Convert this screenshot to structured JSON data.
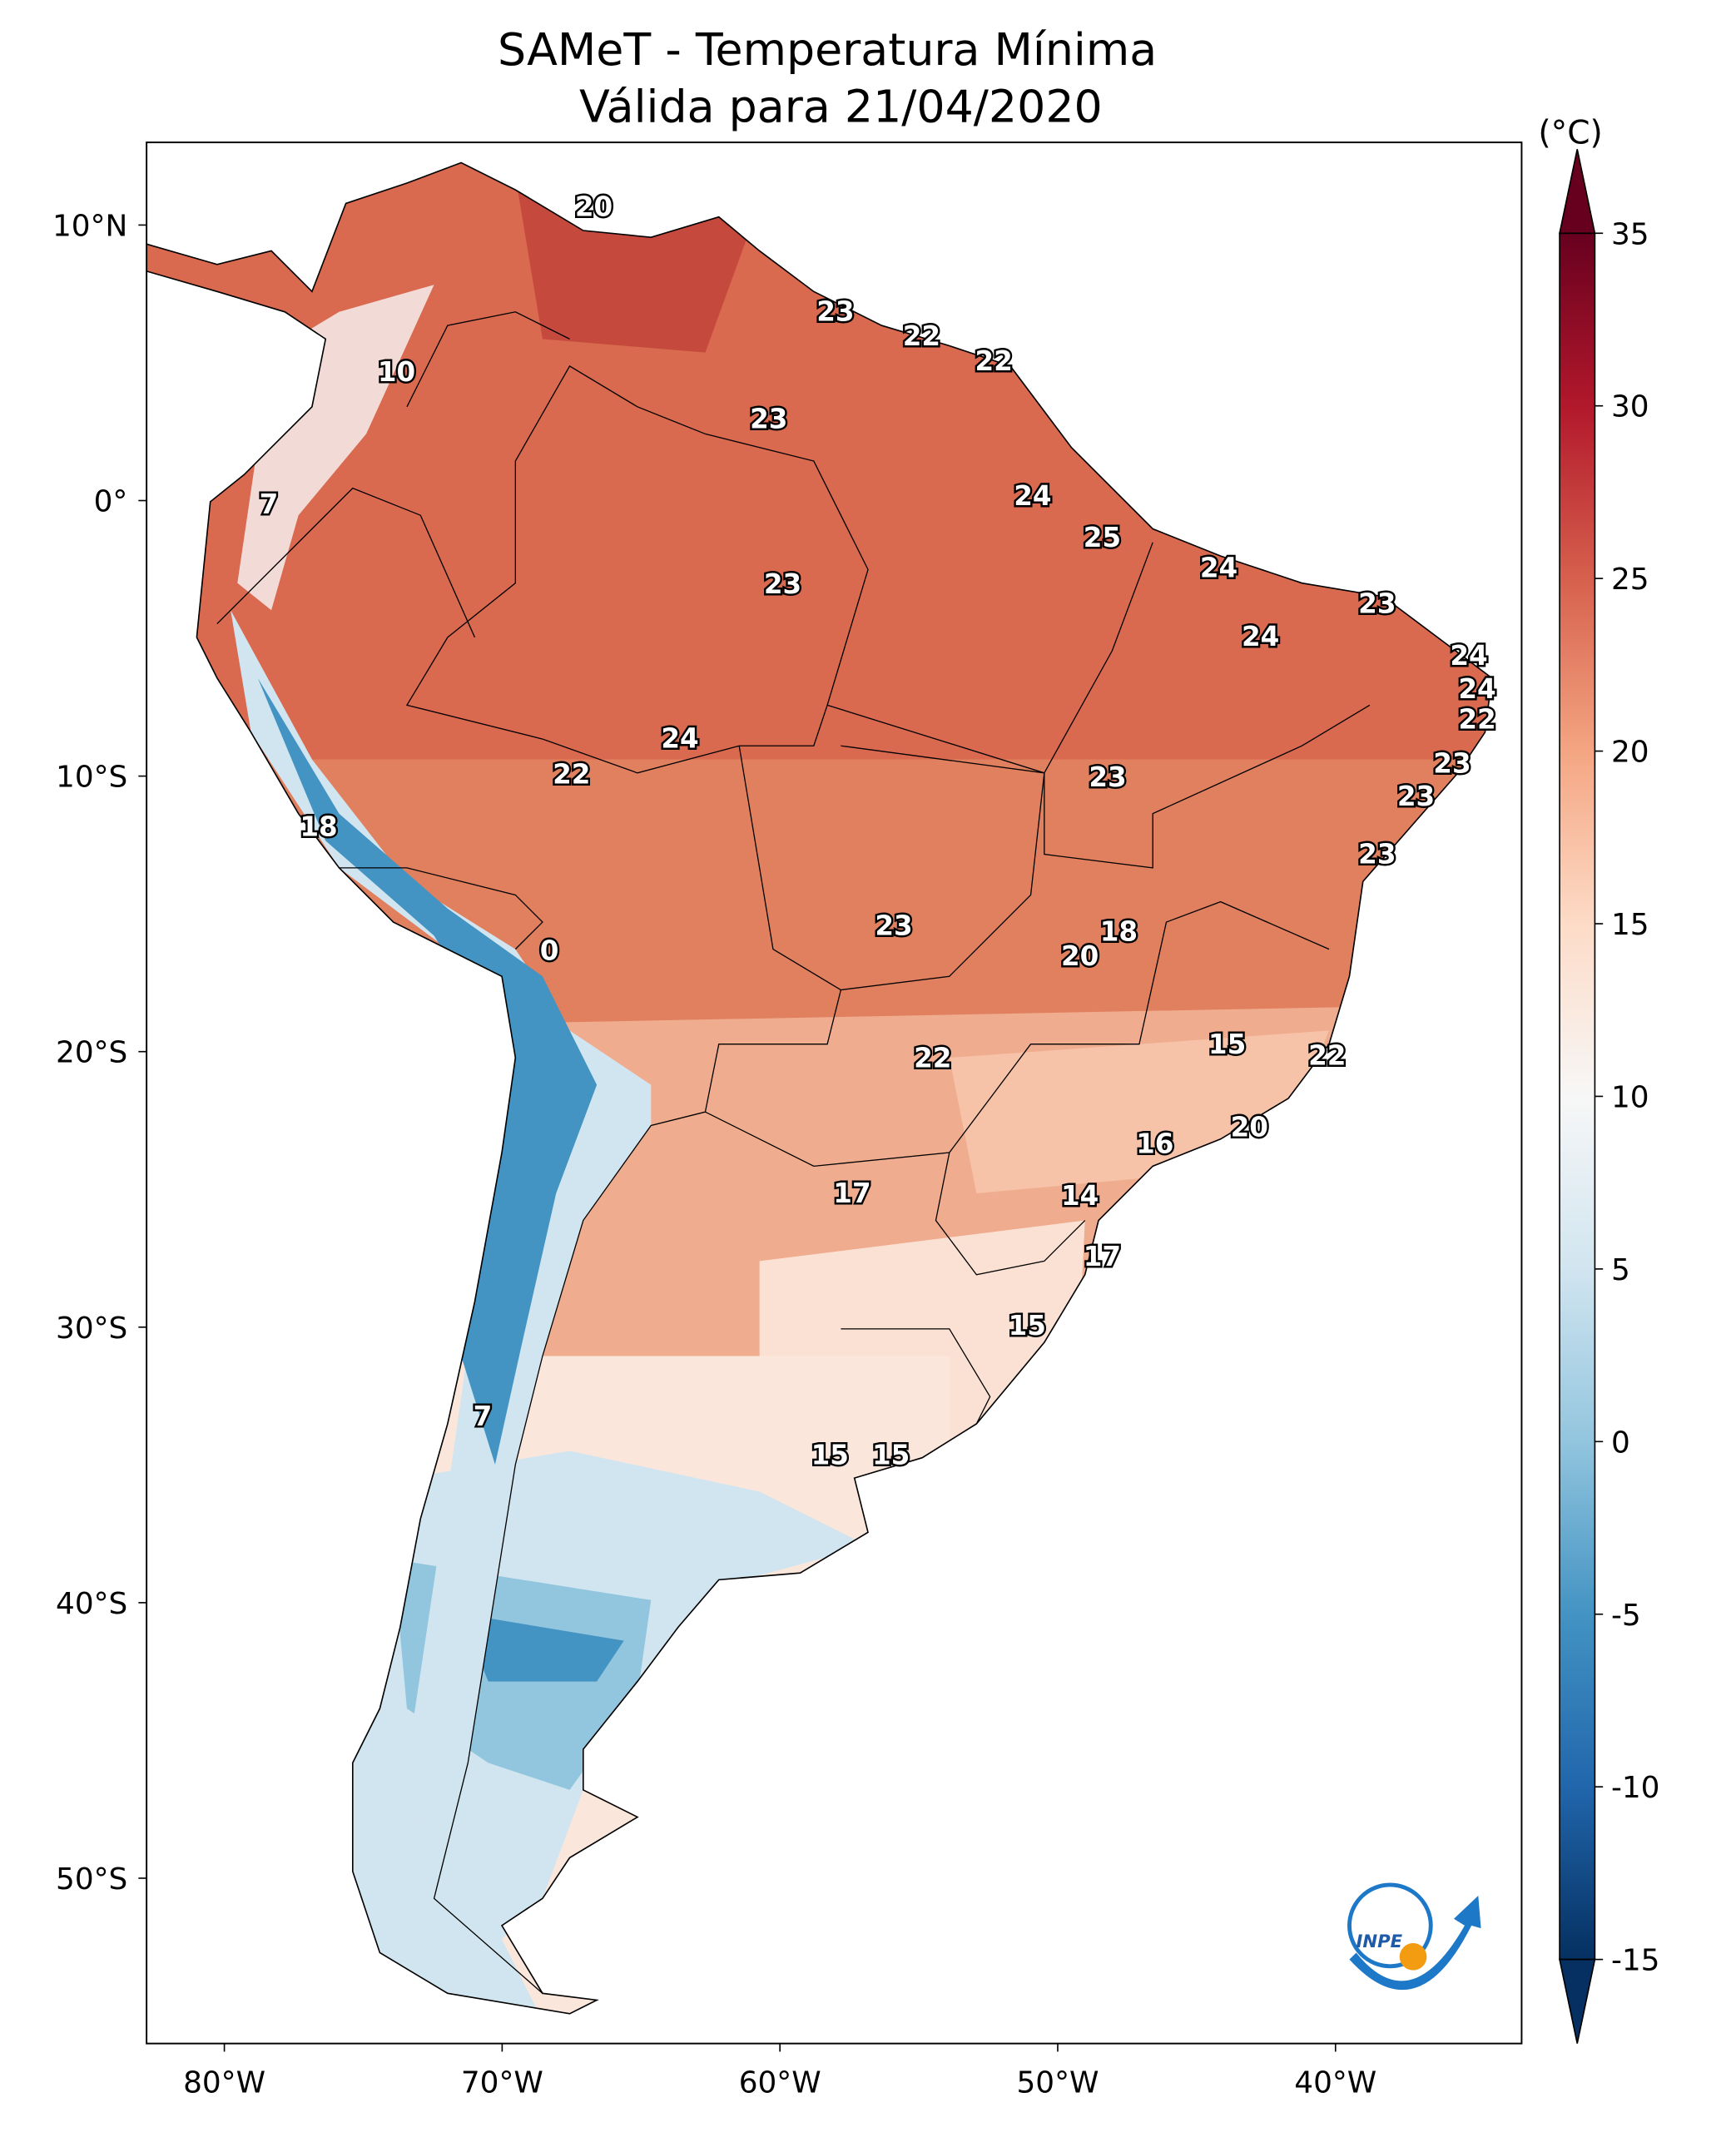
{
  "chart_data": {
    "type": "map",
    "title": "SAMeT - Temperatura Mínima",
    "subtitle": "Válida para 21/04/2020",
    "colorbar_label": "(°C)",
    "colormap": "RdBu_r",
    "logo_text": "INPE",
    "xlim": [
      -82.8,
      -33.3
    ],
    "ylim": [
      -56,
      13
    ],
    "xticks": [
      {
        "value": -80,
        "label": "80°W"
      },
      {
        "value": -70,
        "label": "70°W"
      },
      {
        "value": -60,
        "label": "60°W"
      },
      {
        "value": -50,
        "label": "50°W"
      },
      {
        "value": -40,
        "label": "40°W"
      }
    ],
    "yticks": [
      {
        "value": 10,
        "label": "10°N"
      },
      {
        "value": 0,
        "label": "0°"
      },
      {
        "value": -10,
        "label": "10°S"
      },
      {
        "value": -20,
        "label": "20°S"
      },
      {
        "value": -30,
        "label": "30°S"
      },
      {
        "value": -40,
        "label": "40°S"
      },
      {
        "value": -50,
        "label": "50°S"
      }
    ],
    "clim": [
      -15,
      35
    ],
    "cticks": [
      -15,
      -10,
      -5,
      0,
      5,
      10,
      15,
      20,
      25,
      30,
      35
    ],
    "points": [
      {
        "lon": -66.7,
        "lat": 10.6,
        "value": 20
      },
      {
        "lon": -58.0,
        "lat": 6.8,
        "value": 23
      },
      {
        "lon": -54.9,
        "lat": 5.9,
        "value": 22
      },
      {
        "lon": -52.3,
        "lat": 5.0,
        "value": 22
      },
      {
        "lon": -73.8,
        "lat": 4.6,
        "value": 10
      },
      {
        "lon": -60.4,
        "lat": 2.9,
        "value": 23
      },
      {
        "lon": -78.4,
        "lat": -0.2,
        "value": 7
      },
      {
        "lon": -50.9,
        "lat": 0.1,
        "value": 24
      },
      {
        "lon": -48.4,
        "lat": -1.4,
        "value": 25
      },
      {
        "lon": -44.2,
        "lat": -2.5,
        "value": 24
      },
      {
        "lon": -59.9,
        "lat": -3.1,
        "value": 23
      },
      {
        "lon": -38.5,
        "lat": -3.8,
        "value": 23
      },
      {
        "lon": -42.7,
        "lat": -5.0,
        "value": 24
      },
      {
        "lon": -35.2,
        "lat": -5.7,
        "value": 24
      },
      {
        "lon": -34.9,
        "lat": -6.9,
        "value": 24
      },
      {
        "lon": -34.9,
        "lat": -8.0,
        "value": 22
      },
      {
        "lon": -63.6,
        "lat": -8.7,
        "value": 24
      },
      {
        "lon": -35.8,
        "lat": -9.6,
        "value": 23
      },
      {
        "lon": -67.5,
        "lat": -10.0,
        "value": 22
      },
      {
        "lon": -48.2,
        "lat": -10.1,
        "value": 23
      },
      {
        "lon": -37.1,
        "lat": -10.8,
        "value": 23
      },
      {
        "lon": -76.6,
        "lat": -11.9,
        "value": 18
      },
      {
        "lon": -38.5,
        "lat": -12.9,
        "value": 23
      },
      {
        "lon": -55.9,
        "lat": -15.5,
        "value": 23
      },
      {
        "lon": -47.8,
        "lat": -15.7,
        "value": 18
      },
      {
        "lon": -68.3,
        "lat": -16.4,
        "value": 0
      },
      {
        "lon": -49.2,
        "lat": -16.6,
        "value": 20
      },
      {
        "lon": -43.9,
        "lat": -19.8,
        "value": 15
      },
      {
        "lon": -40.3,
        "lat": -20.2,
        "value": 22
      },
      {
        "lon": -54.5,
        "lat": -20.3,
        "value": 22
      },
      {
        "lon": -43.1,
        "lat": -22.8,
        "value": 20
      },
      {
        "lon": -46.5,
        "lat": -23.4,
        "value": 16
      },
      {
        "lon": -57.4,
        "lat": -25.2,
        "value": 17
      },
      {
        "lon": -49.2,
        "lat": -25.3,
        "value": 14
      },
      {
        "lon": -48.4,
        "lat": -27.5,
        "value": 17
      },
      {
        "lon": -51.1,
        "lat": -30.0,
        "value": 15
      },
      {
        "lon": -70.7,
        "lat": -33.3,
        "value": 7
      },
      {
        "lon": -58.2,
        "lat": -34.7,
        "value": 15
      },
      {
        "lon": -56.0,
        "lat": -34.7,
        "value": 15
      }
    ]
  }
}
